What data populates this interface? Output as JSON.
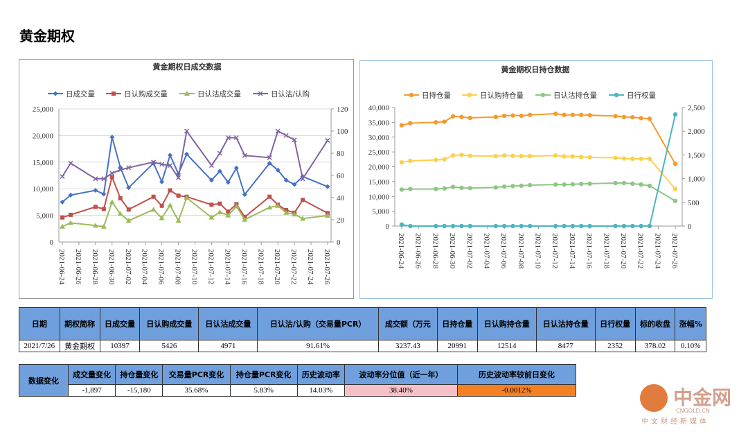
{
  "page_title": "黄金期权",
  "chart_data": [
    {
      "type": "line",
      "title": "黄金期权日成交数据",
      "legend": "top",
      "grid": true,
      "x": [
        "2021-06-24",
        "2021-06-25",
        "2021-06-28",
        "2021-06-29",
        "2021-06-30",
        "2021-07-01",
        "2021-07-02",
        "2021-07-05",
        "2021-07-06",
        "2021-07-07",
        "2021-07-08",
        "2021-07-09",
        "2021-07-12",
        "2021-07-13",
        "2021-07-14",
        "2021-07-15",
        "2021-07-16",
        "2021-07-19",
        "2021-07-20",
        "2021-07-21",
        "2021-07-22",
        "2021-07-23",
        "2021-07-26"
      ],
      "xlim": [
        "2021-06-24",
        "2021-07-26"
      ],
      "xticks": [
        "2021-06-24",
        "2021-06-26",
        "2021-06-28",
        "2021-06-30",
        "2021-07-02",
        "2021-07-04",
        "2021-07-06",
        "2021-07-08",
        "2021-07-10",
        "2021-07-12",
        "2021-07-14",
        "2021-07-16",
        "2021-07-18",
        "2021-07-20",
        "2021-07-22",
        "2021-07-24",
        "2021-07-26"
      ],
      "ylim": [
        0,
        25000
      ],
      "yticks": [
        0,
        {
          "value": 5000,
          "label": "5,000"
        },
        {
          "value": 10000,
          "label": "10,000"
        },
        {
          "value": 15000,
          "label": "15,000"
        },
        {
          "value": 20000,
          "label": "20,000"
        },
        {
          "value": 25000,
          "label": "25,000"
        }
      ],
      "y2lim": [
        0,
        120
      ],
      "y2ticks": [
        0,
        20,
        40,
        60,
        80,
        100,
        120
      ],
      "series": [
        {
          "name": "日成交量",
          "color": "#4472c4",
          "marker": "diamond",
          "values": [
            7500,
            8800,
            9700,
            9000,
            19700,
            14000,
            10200,
            14800,
            11300,
            16300,
            12800,
            16500,
            11600,
            13300,
            11200,
            13900,
            8900,
            14800,
            13500,
            11600,
            10800,
            12300,
            10397
          ]
        },
        {
          "name": "日认购成交量",
          "color": "#c0504d",
          "marker": "square",
          "values": [
            4600,
            5100,
            6600,
            6200,
            12200,
            8200,
            6100,
            8500,
            6800,
            9700,
            8700,
            8500,
            7000,
            7200,
            5700,
            7100,
            4700,
            8500,
            7000,
            6000,
            5500,
            7900,
            5426
          ]
        },
        {
          "name": "日认沽成交量",
          "color": "#9bbb59",
          "marker": "triangle",
          "values": [
            2900,
            3600,
            3100,
            2900,
            7500,
            5300,
            4000,
            6100,
            4500,
            6900,
            4000,
            8300,
            4600,
            5600,
            5000,
            6700,
            4200,
            6500,
            6800,
            5500,
            5200,
            4400,
            4971
          ]
        },
        {
          "name": "日认沽/认购",
          "color": "#8064a2",
          "marker": "x",
          "axis": "y2",
          "values": [
            59,
            71,
            57,
            57,
            62,
            65,
            67,
            72,
            70,
            69,
            58,
            100,
            69,
            80,
            94,
            94,
            78,
            76,
            100,
            96,
            92,
            57,
            91.61
          ]
        }
      ]
    },
    {
      "type": "line",
      "title": "黄金期权日持仓数据",
      "legend": "top",
      "grid": false,
      "x": [
        "2021-06-24",
        "2021-06-25",
        "2021-06-28",
        "2021-06-29",
        "2021-06-30",
        "2021-07-01",
        "2021-07-02",
        "2021-07-05",
        "2021-07-06",
        "2021-07-07",
        "2021-07-08",
        "2021-07-09",
        "2021-07-12",
        "2021-07-13",
        "2021-07-14",
        "2021-07-15",
        "2021-07-16",
        "2021-07-19",
        "2021-07-20",
        "2021-07-21",
        "2021-07-22",
        "2021-07-23",
        "2021-07-26"
      ],
      "xlim": [
        "2021-06-24",
        "2021-07-26"
      ],
      "xticks": [
        "2021-06-24",
        "2021-06-26",
        "2021-06-28",
        "2021-06-30",
        "2021-07-02",
        "2021-07-04",
        "2021-07-06",
        "2021-07-08",
        "2021-07-10",
        "2021-07-12",
        "2021-07-14",
        "2021-07-16",
        "2021-07-18",
        "2021-07-20",
        "2021-07-22",
        "2021-07-24",
        "2021-07-26"
      ],
      "ylim": [
        0,
        40000
      ],
      "yticks": [
        0,
        {
          "value": 5000,
          "label": "5,000"
        },
        {
          "value": 10000,
          "label": "10,000"
        },
        {
          "value": 15000,
          "label": "15,000"
        },
        {
          "value": 20000,
          "label": "20,000"
        },
        {
          "value": 25000,
          "label": "25,000"
        },
        {
          "value": 30000,
          "label": "30,000"
        },
        {
          "value": 35000,
          "label": "35,000"
        },
        {
          "value": 40000,
          "label": "40,000"
        }
      ],
      "y2lim": [
        0,
        2500
      ],
      "y2ticks": [
        0,
        500,
        {
          "value": 1000,
          "label": "1,000"
        },
        {
          "value": 1500,
          "label": "1,500"
        },
        {
          "value": 2000,
          "label": "2,000"
        },
        {
          "value": 2500,
          "label": "2,500"
        }
      ],
      "series": [
        {
          "name": "日持仓量",
          "color": "#f79a2d",
          "marker": "circle",
          "values": [
            34000,
            34700,
            35000,
            35200,
            37000,
            36800,
            36500,
            36800,
            37200,
            37300,
            37200,
            37500,
            37900,
            37500,
            37500,
            37500,
            37400,
            37100,
            36800,
            36700,
            36400,
            36200,
            20991
          ]
        },
        {
          "name": "日认购持仓量",
          "color": "#fcd04d",
          "marker": "circle",
          "values": [
            21500,
            22000,
            22300,
            22500,
            23800,
            24000,
            23700,
            23600,
            23800,
            23700,
            23600,
            23600,
            23800,
            23500,
            23500,
            23300,
            23200,
            23000,
            22800,
            22700,
            22700,
            22700,
            12514
          ]
        },
        {
          "name": "日认沽持仓量",
          "color": "#8cc783",
          "marker": "circle",
          "values": [
            12300,
            12500,
            12500,
            12700,
            13200,
            12900,
            12800,
            13000,
            13300,
            13500,
            13600,
            13800,
            14000,
            14000,
            14100,
            14200,
            14300,
            14500,
            14500,
            14300,
            14000,
            13600,
            8477
          ]
        },
        {
          "name": "日行权量",
          "color": "#4bb5c1",
          "marker": "circle",
          "axis": "y2",
          "values": [
            30,
            0,
            0,
            0,
            0,
            0,
            0,
            0,
            0,
            0,
            0,
            0,
            0,
            0,
            0,
            0,
            0,
            0,
            0,
            0,
            0,
            0,
            2352
          ]
        }
      ]
    }
  ],
  "table1": {
    "header": [
      "日期",
      "期权简称",
      "日成交量",
      "日认购成交量",
      "日认沽成交量",
      "日认沽/认购（交易量PCR）",
      "成交额（万元",
      "日持仓量",
      "日认购持仓量",
      "日认沽持仓量",
      "日行权量",
      "标的收盘",
      "涨幅%"
    ],
    "rows": [
      [
        "2021/7/26",
        "黄金期权",
        10397,
        5426,
        4971,
        "91.61%",
        3237.43,
        20991,
        12514,
        8477,
        2352,
        378.02,
        "0.10%"
      ]
    ]
  },
  "table2": {
    "label": "数据变化",
    "header": [
      "成交量变化",
      "持仓量变化",
      "交易量PCR变化",
      "持仓量PCR变化",
      "历史波动率",
      "波动率分位值（近一年）",
      "历史波动率较前日变化"
    ],
    "rows": [
      [
        "-1,897",
        "-15,180",
        "35.68%",
        "5.83%",
        "14.03%",
        "38.40%",
        "-0.0012%"
      ]
    ]
  },
  "watermark": {
    "brand": "中金网",
    "domain": "CNGOLD.CN",
    "slogan": "中文财经新媒体"
  }
}
